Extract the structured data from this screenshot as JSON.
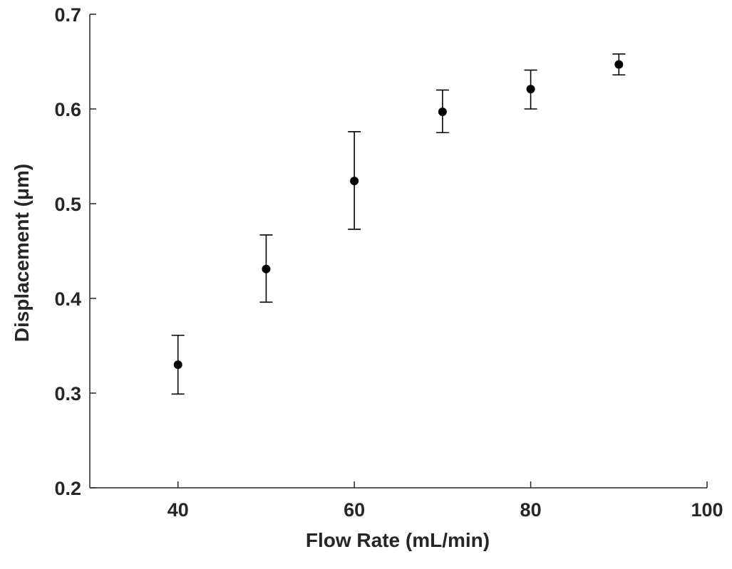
{
  "chart_data": {
    "type": "scatter",
    "title": "",
    "xlabel": "Flow Rate (mL/min)",
    "ylabel": "Displacement (μm)",
    "xlim": [
      30,
      100
    ],
    "ylim": [
      0.2,
      0.7
    ],
    "xticks": [
      40,
      60,
      80,
      100
    ],
    "xtick_labels": [
      "40",
      "60",
      "80",
      "100"
    ],
    "yticks": [
      0.2,
      0.3,
      0.4,
      0.5,
      0.6,
      0.7
    ],
    "ytick_labels": [
      "0.2",
      "0.3",
      "0.4",
      "0.5",
      "0.6",
      "0.7"
    ],
    "grid": false,
    "legend": "none",
    "series": [
      {
        "points": [
          {
            "x": 40,
            "y": 0.33,
            "y_low": 0.299,
            "y_high": 0.361
          },
          {
            "x": 50,
            "y": 0.431,
            "y_low": 0.396,
            "y_high": 0.467
          },
          {
            "x": 60,
            "y": 0.524,
            "y_low": 0.473,
            "y_high": 0.576
          },
          {
            "x": 70,
            "y": 0.597,
            "y_low": 0.575,
            "y_high": 0.62
          },
          {
            "x": 80,
            "y": 0.621,
            "y_low": 0.6,
            "y_high": 0.641
          },
          {
            "x": 90,
            "y": 0.647,
            "y_low": 0.636,
            "y_high": 0.658
          }
        ]
      }
    ],
    "colors": {
      "marker": "#000000",
      "axis": "#262626"
    }
  }
}
